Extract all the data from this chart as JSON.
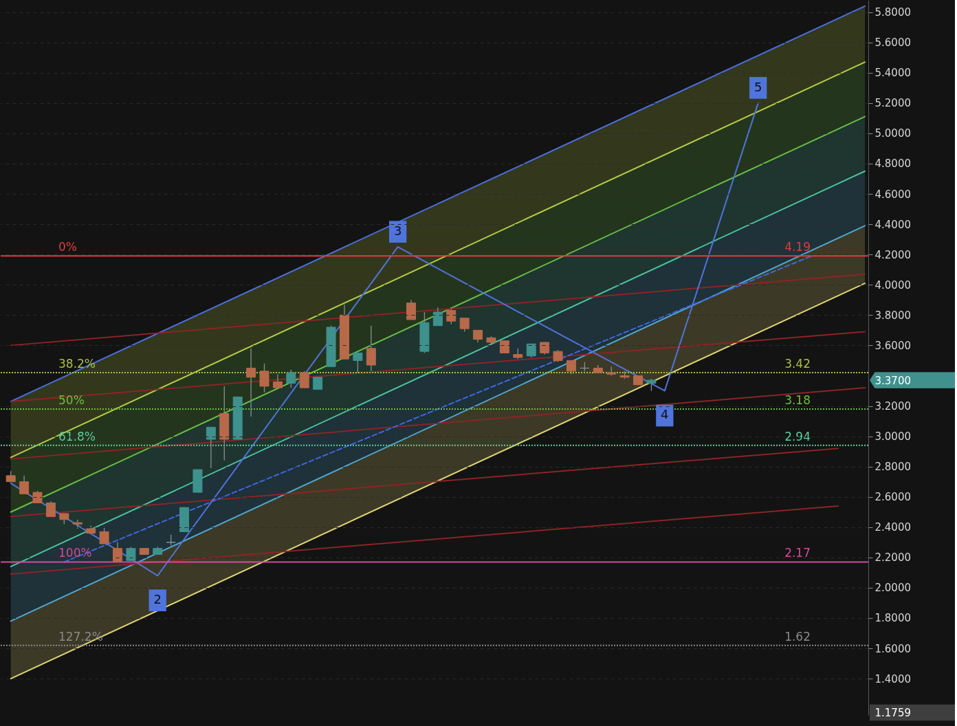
{
  "chart_data": {
    "type": "candlestick",
    "categories": [
      null,
      null,
      null,
      null,
      null,
      null,
      null,
      null,
      null,
      null,
      null,
      null,
      null,
      null,
      null,
      null,
      null,
      null,
      null,
      null,
      null,
      null,
      null,
      null,
      null,
      null,
      null,
      null,
      null,
      null,
      null,
      null,
      null,
      null,
      null,
      null,
      null,
      null,
      null,
      null,
      null,
      null,
      null,
      null,
      null,
      null,
      null,
      null,
      null,
      null,
      null,
      null,
      null,
      null,
      null,
      null,
      null,
      null,
      null,
      null,
      null,
      null,
      null,
      null,
      null
    ],
    "ohlc": [
      [
        2.74,
        2.77,
        2.7,
        2.7
      ],
      [
        2.7,
        2.74,
        2.62,
        2.62
      ],
      [
        2.63,
        2.64,
        2.56,
        2.56
      ],
      [
        2.56,
        2.57,
        2.47,
        2.47
      ],
      [
        2.49,
        2.49,
        2.42,
        2.45
      ],
      [
        2.43,
        2.45,
        2.39,
        2.42
      ],
      [
        2.39,
        2.41,
        2.36,
        2.36
      ],
      [
        2.37,
        2.4,
        2.29,
        2.29
      ],
      [
        2.26,
        2.3,
        2.17,
        2.17
      ],
      [
        2.18,
        2.27,
        2.18,
        2.26
      ],
      [
        2.26,
        2.26,
        2.22,
        2.22
      ],
      [
        2.22,
        2.27,
        2.22,
        2.26
      ],
      [
        2.3,
        2.35,
        2.28,
        2.3
      ],
      [
        2.37,
        2.53,
        2.37,
        2.53
      ],
      [
        2.63,
        2.78,
        2.63,
        2.78
      ],
      [
        2.98,
        3.06,
        2.79,
        3.06
      ],
      [
        3.15,
        3.33,
        2.84,
        2.98
      ],
      [
        2.98,
        3.26,
        2.98,
        3.26
      ],
      [
        3.45,
        3.58,
        3.13,
        3.39
      ],
      [
        3.43,
        3.48,
        3.29,
        3.33
      ],
      [
        3.36,
        3.41,
        3.32,
        3.32
      ],
      [
        3.35,
        3.44,
        3.32,
        3.42
      ],
      [
        3.42,
        3.43,
        3.32,
        3.32
      ],
      [
        3.31,
        3.39,
        3.31,
        3.39
      ],
      [
        3.46,
        3.73,
        3.46,
        3.72
      ],
      [
        3.8,
        3.87,
        3.51,
        3.51
      ],
      [
        3.5,
        3.55,
        3.42,
        3.55
      ],
      [
        3.58,
        3.73,
        3.43,
        3.47
      ],
      null,
      null,
      [
        3.88,
        3.9,
        3.77,
        3.77
      ],
      [
        3.56,
        3.82,
        3.55,
        3.75
      ],
      [
        3.73,
        3.85,
        3.73,
        3.82
      ],
      [
        3.83,
        3.85,
        3.74,
        3.76
      ],
      [
        3.78,
        3.78,
        3.69,
        3.71
      ],
      [
        3.7,
        3.7,
        3.62,
        3.64
      ],
      [
        3.65,
        3.66,
        3.61,
        3.62
      ],
      [
        3.63,
        3.63,
        3.55,
        3.55
      ],
      [
        3.54,
        3.58,
        3.51,
        3.52
      ],
      [
        3.53,
        3.61,
        3.52,
        3.61
      ],
      [
        3.62,
        3.62,
        3.54,
        3.55
      ],
      [
        3.56,
        3.57,
        3.49,
        3.5
      ],
      [
        3.5,
        3.5,
        3.41,
        3.43
      ],
      [
        3.45,
        3.49,
        3.43,
        3.45
      ],
      [
        3.45,
        3.47,
        3.42,
        3.42
      ],
      [
        3.42,
        3.46,
        3.4,
        3.41
      ],
      [
        3.4,
        3.43,
        3.38,
        3.39
      ],
      [
        3.4,
        3.4,
        3.34,
        3.34
      ],
      [
        3.35,
        3.38,
        3.3,
        3.37
      ],
      null,
      null,
      null,
      null,
      null,
      null,
      null,
      null,
      null,
      null,
      null,
      null,
      null,
      null,
      null,
      null
    ],
    "colors": [
      "#b8694a",
      "#b8694a",
      "#b8694a",
      "#b8694a",
      "#b8694a",
      "#b8694a",
      "#b8694a",
      "#b8694a",
      "#b8694a",
      "#3f918d",
      "#b8694a",
      "#3f918d",
      "#8d9896",
      "#3f918d",
      "#3f918d",
      "#3f918d",
      "#b8694a",
      "#3f918d",
      "#b8694a",
      "#b8694a",
      "#b8694a",
      "#3f918d",
      "#b8694a",
      "#3f918d",
      "#3f918d",
      "#b8694a",
      "#3f918d",
      "#b8694a",
      null,
      null,
      "#b8694a",
      "#3f918d",
      "#3f918d",
      "#b8694a",
      "#b8694a",
      "#b8694a",
      "#b8694a",
      "#b8694a",
      "#b8694a",
      "#3f918d",
      "#b8694a",
      "#b8694a",
      "#b8694a",
      "#8d9896",
      "#b8694a",
      "#b8694a",
      "#b8694a",
      "#b8694a",
      "#3f918d",
      null,
      null,
      null,
      null,
      null,
      null,
      null,
      null,
      null,
      null,
      null,
      null,
      null,
      null,
      null,
      null
    ],
    "color": "#7f8c8a",
    "series": [
      {
        "type": "line",
        "color": "#4a6fe3",
        "values": [
          3.23,
          null,
          null,
          null,
          null,
          null,
          null,
          null,
          null,
          null,
          null,
          null,
          null,
          null,
          null,
          null,
          null,
          null,
          null,
          null,
          null,
          null,
          null,
          null,
          null,
          null,
          null,
          null,
          null,
          null,
          null,
          null,
          null,
          null,
          null,
          null,
          null,
          null,
          null,
          null,
          null,
          null,
          null,
          null,
          null,
          null,
          null,
          null,
          null,
          null,
          null,
          null,
          null,
          null,
          null,
          null,
          null,
          null,
          null,
          null,
          null,
          null,
          null,
          null,
          5.84
        ]
      },
      {
        "type": "line",
        "color": "#b5cf46",
        "values": [
          2.86,
          null,
          null,
          null,
          null,
          null,
          null,
          null,
          null,
          null,
          null,
          null,
          null,
          null,
          null,
          null,
          null,
          null,
          null,
          null,
          null,
          null,
          null,
          null,
          null,
          null,
          null,
          null,
          null,
          null,
          null,
          null,
          null,
          null,
          null,
          null,
          null,
          null,
          null,
          null,
          null,
          null,
          null,
          null,
          null,
          null,
          null,
          null,
          null,
          null,
          null,
          null,
          null,
          null,
          null,
          null,
          null,
          null,
          null,
          null,
          null,
          null,
          null,
          null,
          5.47
        ],
        "upper": [
          3.23,
          null,
          null,
          null,
          null,
          null,
          null,
          null,
          null,
          null,
          null,
          null,
          null,
          null,
          null,
          null,
          null,
          null,
          null,
          null,
          null,
          null,
          null,
          null,
          null,
          null,
          null,
          null,
          null,
          null,
          null,
          null,
          null,
          null,
          null,
          null,
          null,
          null,
          null,
          null,
          null,
          null,
          null,
          null,
          null,
          null,
          null,
          null,
          null,
          null,
          null,
          null,
          null,
          null,
          null,
          null,
          null,
          null,
          null,
          null,
          null,
          null,
          null,
          null,
          5.84
        ],
        "lower": [
          2.86,
          null,
          null,
          null,
          null,
          null,
          null,
          null,
          null,
          null,
          null,
          null,
          null,
          null,
          null,
          null,
          null,
          null,
          null,
          null,
          null,
          null,
          null,
          null,
          null,
          null,
          null,
          null,
          null,
          null,
          null,
          null,
          null,
          null,
          null,
          null,
          null,
          null,
          null,
          null,
          null,
          null,
          null,
          null,
          null,
          null,
          null,
          null,
          null,
          null,
          null,
          null,
          null,
          null,
          null,
          null,
          null,
          null,
          null,
          null,
          null,
          null,
          null,
          null,
          5.47
        ]
      },
      {
        "type": "line",
        "color": "#68bf45",
        "values": [
          2.5,
          null,
          null,
          null,
          null,
          null,
          null,
          null,
          null,
          null,
          null,
          null,
          null,
          null,
          null,
          null,
          null,
          null,
          null,
          null,
          null,
          null,
          null,
          null,
          null,
          null,
          null,
          null,
          null,
          null,
          null,
          null,
          null,
          null,
          null,
          null,
          null,
          null,
          null,
          null,
          null,
          null,
          null,
          null,
          null,
          null,
          null,
          null,
          null,
          null,
          null,
          null,
          null,
          null,
          null,
          null,
          null,
          null,
          null,
          null,
          null,
          null,
          null,
          null,
          5.11
        ],
        "upper": [
          2.86,
          null,
          null,
          null,
          null,
          null,
          null,
          null,
          null,
          null,
          null,
          null,
          null,
          null,
          null,
          null,
          null,
          null,
          null,
          null,
          null,
          null,
          null,
          null,
          null,
          null,
          null,
          null,
          null,
          null,
          null,
          null,
          null,
          null,
          null,
          null,
          null,
          null,
          null,
          null,
          null,
          null,
          null,
          null,
          null,
          null,
          null,
          null,
          null,
          null,
          null,
          null,
          null,
          null,
          null,
          null,
          null,
          null,
          null,
          null,
          null,
          null,
          null,
          null,
          5.47
        ],
        "lower": [
          2.5,
          null,
          null,
          null,
          null,
          null,
          null,
          null,
          null,
          null,
          null,
          null,
          null,
          null,
          null,
          null,
          null,
          null,
          null,
          null,
          null,
          null,
          null,
          null,
          null,
          null,
          null,
          null,
          null,
          null,
          null,
          null,
          null,
          null,
          null,
          null,
          null,
          null,
          null,
          null,
          null,
          null,
          null,
          null,
          null,
          null,
          null,
          null,
          null,
          null,
          null,
          null,
          null,
          null,
          null,
          null,
          null,
          null,
          null,
          null,
          null,
          null,
          null,
          null,
          5.11
        ]
      },
      {
        "type": "line",
        "color": "#4cc4a0",
        "values": [
          2.14,
          null,
          null,
          null,
          null,
          null,
          null,
          null,
          null,
          null,
          null,
          null,
          null,
          null,
          null,
          null,
          null,
          null,
          null,
          null,
          null,
          null,
          null,
          null,
          null,
          null,
          null,
          null,
          null,
          null,
          null,
          null,
          null,
          null,
          null,
          null,
          null,
          null,
          null,
          null,
          null,
          null,
          null,
          null,
          null,
          null,
          null,
          null,
          null,
          null,
          null,
          null,
          null,
          null,
          null,
          null,
          null,
          null,
          null,
          null,
          null,
          null,
          null,
          null,
          4.75
        ],
        "upper": [
          2.5,
          null,
          null,
          null,
          null,
          null,
          null,
          null,
          null,
          null,
          null,
          null,
          null,
          null,
          null,
          null,
          null,
          null,
          null,
          null,
          null,
          null,
          null,
          null,
          null,
          null,
          null,
          null,
          null,
          null,
          null,
          null,
          null,
          null,
          null,
          null,
          null,
          null,
          null,
          null,
          null,
          null,
          null,
          null,
          null,
          null,
          null,
          null,
          null,
          null,
          null,
          null,
          null,
          null,
          null,
          null,
          null,
          null,
          null,
          null,
          null,
          null,
          null,
          null,
          5.11
        ],
        "lower": [
          2.14,
          null,
          null,
          null,
          null,
          null,
          null,
          null,
          null,
          null,
          null,
          null,
          null,
          null,
          null,
          null,
          null,
          null,
          null,
          null,
          null,
          null,
          null,
          null,
          null,
          null,
          null,
          null,
          null,
          null,
          null,
          null,
          null,
          null,
          null,
          null,
          null,
          null,
          null,
          null,
          null,
          null,
          null,
          null,
          null,
          null,
          null,
          null,
          null,
          null,
          null,
          null,
          null,
          null,
          null,
          null,
          null,
          null,
          null,
          null,
          null,
          null,
          null,
          null,
          4.75
        ]
      },
      {
        "type": "line",
        "color": "#50a8d4",
        "values": [
          1.78,
          null,
          null,
          null,
          null,
          null,
          null,
          null,
          null,
          null,
          null,
          null,
          null,
          null,
          null,
          null,
          null,
          null,
          null,
          null,
          null,
          null,
          null,
          null,
          null,
          null,
          null,
          null,
          null,
          null,
          null,
          null,
          null,
          null,
          null,
          null,
          null,
          null,
          null,
          null,
          null,
          null,
          null,
          null,
          null,
          null,
          null,
          null,
          null,
          null,
          null,
          null,
          null,
          null,
          null,
          null,
          null,
          null,
          null,
          null,
          null,
          null,
          null,
          null,
          4.39
        ],
        "upper": [
          2.14,
          null,
          null,
          null,
          null,
          null,
          null,
          null,
          null,
          null,
          null,
          null,
          null,
          null,
          null,
          null,
          null,
          null,
          null,
          null,
          null,
          null,
          null,
          null,
          null,
          null,
          null,
          null,
          null,
          null,
          null,
          null,
          null,
          null,
          null,
          null,
          null,
          null,
          null,
          null,
          null,
          null,
          null,
          null,
          null,
          null,
          null,
          null,
          null,
          null,
          null,
          null,
          null,
          null,
          null,
          null,
          null,
          null,
          null,
          null,
          null,
          null,
          null,
          null,
          4.75
        ],
        "lower": [
          1.78,
          null,
          null,
          null,
          null,
          null,
          null,
          null,
          null,
          null,
          null,
          null,
          null,
          null,
          null,
          null,
          null,
          null,
          null,
          null,
          null,
          null,
          null,
          null,
          null,
          null,
          null,
          null,
          null,
          null,
          null,
          null,
          null,
          null,
          null,
          null,
          null,
          null,
          null,
          null,
          null,
          null,
          null,
          null,
          null,
          null,
          null,
          null,
          null,
          null,
          null,
          null,
          null,
          null,
          null,
          null,
          null,
          null,
          null,
          null,
          null,
          null,
          null,
          null,
          4.39
        ]
      },
      {
        "type": "line",
        "color": "#e2d672",
        "values": [
          1.4,
          null,
          null,
          null,
          null,
          null,
          null,
          null,
          null,
          null,
          null,
          null,
          null,
          null,
          null,
          null,
          null,
          null,
          null,
          null,
          null,
          null,
          null,
          null,
          null,
          null,
          null,
          null,
          null,
          null,
          null,
          null,
          null,
          null,
          null,
          null,
          null,
          null,
          null,
          null,
          null,
          null,
          null,
          null,
          null,
          null,
          null,
          null,
          null,
          null,
          null,
          null,
          null,
          null,
          null,
          null,
          null,
          null,
          null,
          null,
          null,
          null,
          null,
          null,
          4.01
        ],
        "upper": [
          1.78,
          null,
          null,
          null,
          null,
          null,
          null,
          null,
          null,
          null,
          null,
          null,
          null,
          null,
          null,
          null,
          null,
          null,
          null,
          null,
          null,
          null,
          null,
          null,
          null,
          null,
          null,
          null,
          null,
          null,
          null,
          null,
          null,
          null,
          null,
          null,
          null,
          null,
          null,
          null,
          null,
          null,
          null,
          null,
          null,
          null,
          null,
          null,
          null,
          null,
          null,
          null,
          null,
          null,
          null,
          null,
          null,
          null,
          null,
          null,
          null,
          null,
          null,
          null,
          4.39
        ],
        "lower": [
          1.4,
          null,
          null,
          null,
          null,
          null,
          null,
          null,
          null,
          null,
          null,
          null,
          null,
          null,
          null,
          null,
          null,
          null,
          null,
          null,
          null,
          null,
          null,
          null,
          null,
          null,
          null,
          null,
          null,
          null,
          null,
          null,
          null,
          null,
          null,
          null,
          null,
          null,
          null,
          null,
          null,
          null,
          null,
          null,
          null,
          null,
          null,
          null,
          null,
          null,
          null,
          null,
          null,
          null,
          null,
          null,
          null,
          null,
          null,
          null,
          null,
          null,
          null,
          null,
          4.01
        ]
      },
      {
        "type": "line",
        "color": "#8c2424",
        "values": [
          3.6,
          null,
          null,
          null,
          null,
          null,
          null,
          null,
          null,
          null,
          null,
          null,
          null,
          null,
          null,
          null,
          null,
          null,
          null,
          null,
          null,
          null,
          null,
          null,
          null,
          null,
          null,
          null,
          null,
          null,
          null,
          null,
          null,
          null,
          null,
          null,
          null,
          null,
          null,
          null,
          null,
          null,
          null,
          null,
          null,
          null,
          null,
          null,
          null,
          null,
          null,
          null,
          null,
          null,
          null,
          null,
          null,
          null,
          null,
          null,
          null,
          null,
          null,
          null,
          4.07
        ]
      },
      {
        "type": "line",
        "color": "#8c2424",
        "values": [
          3.23,
          null,
          null,
          null,
          null,
          null,
          null,
          null,
          null,
          null,
          null,
          null,
          null,
          null,
          null,
          null,
          null,
          null,
          null,
          null,
          null,
          null,
          null,
          null,
          null,
          null,
          null,
          null,
          null,
          null,
          null,
          null,
          null,
          null,
          null,
          null,
          null,
          null,
          null,
          null,
          null,
          null,
          null,
          null,
          null,
          null,
          null,
          null,
          null,
          null,
          null,
          null,
          null,
          null,
          null,
          null,
          null,
          null,
          null,
          null,
          null,
          null,
          null,
          null,
          3.69
        ]
      },
      {
        "type": "line",
        "color": "#8c2424",
        "values": [
          2.85,
          null,
          null,
          null,
          null,
          null,
          null,
          null,
          null,
          null,
          null,
          null,
          null,
          null,
          null,
          null,
          null,
          null,
          null,
          null,
          null,
          null,
          null,
          null,
          null,
          null,
          null,
          null,
          null,
          null,
          null,
          null,
          null,
          null,
          null,
          null,
          null,
          null,
          null,
          null,
          null,
          null,
          null,
          null,
          null,
          null,
          null,
          null,
          null,
          null,
          null,
          null,
          null,
          null,
          null,
          null,
          null,
          null,
          null,
          null,
          null,
          null,
          null,
          null,
          3.32
        ]
      },
      {
        "type": "line",
        "color": "#8c2424",
        "values": [
          2.47,
          null,
          null,
          null,
          null,
          null,
          null,
          null,
          null,
          null,
          null,
          null,
          null,
          null,
          null,
          null,
          null,
          null,
          null,
          null,
          null,
          null,
          null,
          null,
          null,
          null,
          null,
          null,
          null,
          null,
          null,
          null,
          null,
          null,
          null,
          null,
          null,
          null,
          null,
          null,
          null,
          null,
          null,
          null,
          null,
          null,
          null,
          null,
          null,
          null,
          null,
          null,
          null,
          null,
          null,
          null,
          null,
          null,
          null,
          null,
          null,
          null,
          2.92,
          null,
          null
        ]
      },
      {
        "type": "line",
        "color": "#8c2424",
        "values": [
          2.09,
          null,
          null,
          null,
          null,
          null,
          null,
          null,
          null,
          null,
          null,
          null,
          null,
          null,
          null,
          null,
          null,
          null,
          null,
          null,
          null,
          null,
          null,
          null,
          null,
          null,
          null,
          null,
          null,
          null,
          null,
          null,
          null,
          null,
          null,
          null,
          null,
          null,
          null,
          null,
          null,
          null,
          null,
          null,
          null,
          null,
          null,
          null,
          null,
          null,
          null,
          null,
          null,
          null,
          null,
          null,
          null,
          null,
          null,
          null,
          null,
          null,
          2.54,
          null,
          null
        ]
      },
      {
        "type": "line",
        "color": "#3d68e0",
        "line_style": "dashed",
        "values": [
          null,
          null,
          null,
          null,
          2.17,
          null,
          null,
          null,
          null,
          null,
          null,
          null,
          null,
          null,
          null,
          null,
          null,
          null,
          null,
          null,
          null,
          null,
          null,
          null,
          null,
          null,
          null,
          null,
          null,
          null,
          null,
          null,
          null,
          null,
          null,
          null,
          null,
          null,
          null,
          null,
          null,
          null,
          null,
          null,
          null,
          null,
          null,
          null,
          null,
          null,
          null,
          null,
          null,
          null,
          null,
          null,
          null,
          null,
          null,
          null,
          4.19,
          null,
          null,
          null,
          null
        ]
      },
      {
        "type": "line",
        "color": "#4f74dc",
        "values": [
          2.69,
          null,
          null,
          null,
          null,
          null,
          null,
          null,
          null,
          null,
          null,
          2.08,
          null,
          null,
          null,
          null,
          null,
          null,
          null,
          null,
          null,
          null,
          null,
          null,
          null,
          null,
          null,
          null,
          null,
          4.25,
          null,
          null,
          null,
          null,
          null,
          null,
          null,
          null,
          null,
          null,
          null,
          null,
          null,
          null,
          null,
          null,
          null,
          null,
          null,
          3.3,
          null,
          null,
          null,
          null,
          null,
          null,
          5.2,
          null,
          null,
          null,
          null,
          null,
          null,
          null,
          null
        ]
      }
    ],
    "ref_lines": [
      {
        "axis": "y",
        "value": 4.19,
        "label": "4.19",
        "color": "#e03c3c",
        "line_style": "solid"
      },
      {
        "axis": "y",
        "value": 3.42,
        "label": "3.42",
        "color": "#a9c23f",
        "line_style": "dotted"
      },
      {
        "axis": "y",
        "value": 3.18,
        "label": "3.18",
        "color": "#6cbf3f",
        "line_style": "dotted"
      },
      {
        "axis": "y",
        "value": 2.94,
        "label": "2.94",
        "color": "#5ccf9e",
        "line_style": "dotted"
      },
      {
        "axis": "y",
        "value": 2.17,
        "label": "2.17",
        "color": "#d44a9e",
        "line_style": "solid"
      },
      {
        "axis": "y",
        "value": 1.62,
        "label": "1.62",
        "color": "#8a8a8a",
        "line_style": "dotted"
      }
    ],
    "annotations": [
      {
        "text": "0%",
        "y": 4.19
      },
      {
        "text": "38.2%",
        "y": 3.42
      },
      {
        "text": "50%",
        "y": 3.18
      },
      {
        "text": "61.8%",
        "y": 2.94
      },
      {
        "text": "100%",
        "y": 2.17
      },
      {
        "text": "127.2%",
        "y": 1.62
      },
      {
        "text": "2",
        "y": 2.08
      },
      {
        "text": "3",
        "y": 4.25
      },
      {
        "text": "4",
        "y": 3.3
      },
      {
        "text": "5",
        "y": 5.2
      }
    ],
    "ylim": [
      1.16,
      5.88
    ],
    "yticks": [
      {
        "value": 1.1759,
        "label": "1.1759"
      },
      {
        "value": 1.4,
        "label": "1.4000"
      },
      {
        "value": 1.6,
        "label": "1.6000"
      },
      {
        "value": 1.8,
        "label": "1.8000"
      },
      {
        "value": 2.0,
        "label": "2.0000"
      },
      {
        "value": 2.2,
        "label": "2.2000"
      },
      {
        "value": 2.4,
        "label": "2.4000"
      },
      {
        "value": 2.6,
        "label": "2.6000"
      },
      {
        "value": 2.8,
        "label": "2.8000"
      },
      {
        "value": 3.0,
        "label": "3.0000"
      },
      {
        "value": 3.2,
        "label": "3.2000"
      },
      {
        "value": 3.37,
        "label": "3.3700"
      },
      {
        "value": 3.6,
        "label": "3.6000"
      },
      {
        "value": 3.8,
        "label": "3.8000"
      },
      {
        "value": 4.0,
        "label": "4.0000"
      },
      {
        "value": 4.2,
        "label": "4.2000"
      },
      {
        "value": 4.4,
        "label": "4.4000"
      },
      {
        "value": 4.6,
        "label": "4.6000"
      },
      {
        "value": 4.8,
        "label": "4.8000"
      },
      {
        "value": 5.0,
        "label": "5.0000"
      },
      {
        "value": 5.2,
        "label": "5.2000"
      },
      {
        "value": 5.4,
        "label": "5.4000"
      },
      {
        "value": 5.6,
        "label": "5.6000"
      },
      {
        "value": 5.8,
        "label": "5.8000"
      }
    ],
    "grid": "y"
  }
}
